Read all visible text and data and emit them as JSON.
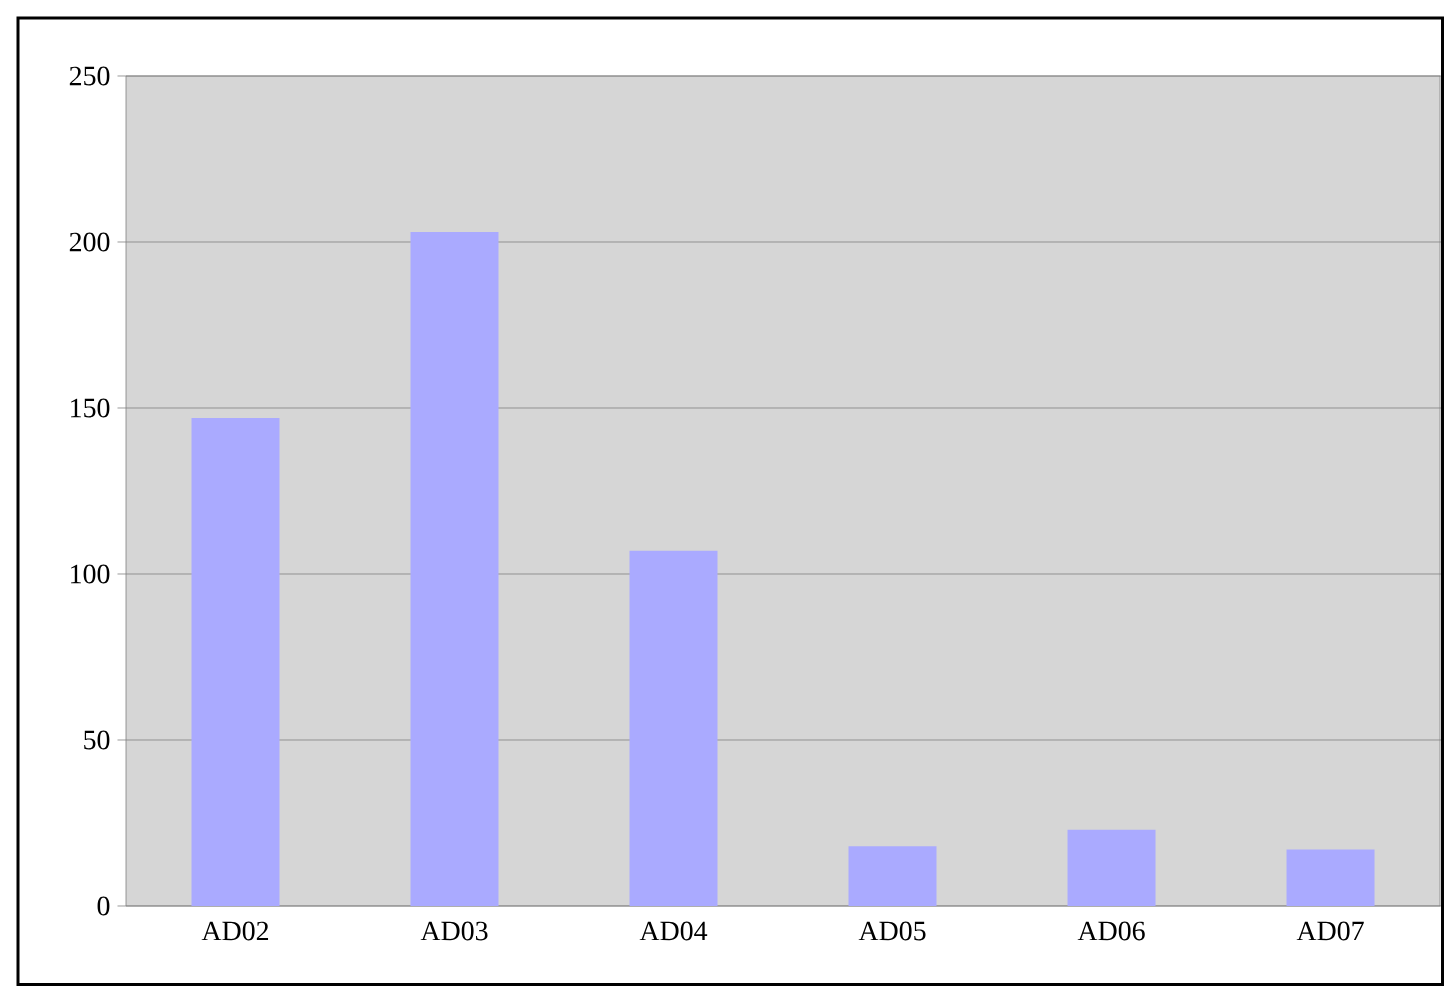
{
  "chart_data": {
    "type": "bar",
    "categories": [
      "AD02",
      "AD03",
      "AD04",
      "AD05",
      "AD06",
      "AD07"
    ],
    "values": [
      147,
      203,
      107,
      18,
      23,
      17
    ],
    "color": "#aaaaff",
    "ylim": [
      0,
      250
    ],
    "yticks": [
      0,
      50,
      100,
      150,
      200,
      250
    ],
    "grid": "y"
  }
}
